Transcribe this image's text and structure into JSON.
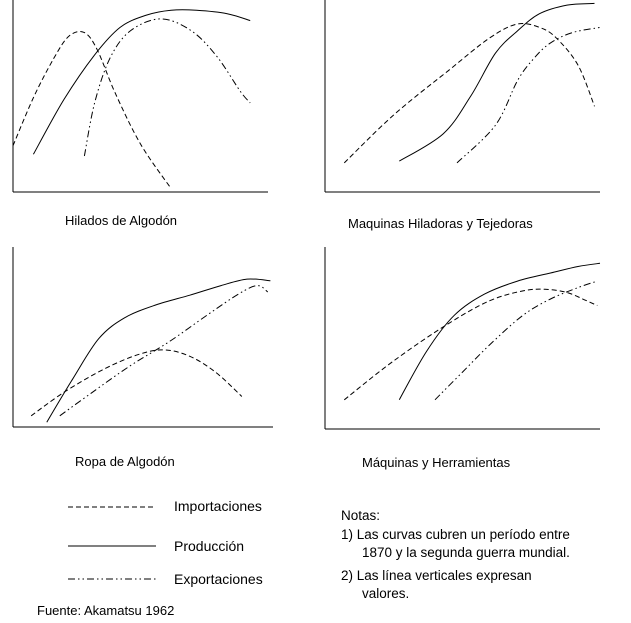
{
  "chart_data": [
    {
      "type": "line",
      "title": "Hilados de Algodón",
      "grid": false,
      "axis_ticks": false,
      "series": [
        {
          "name": "Importaciones",
          "style": "dashed",
          "points": [
            [
              0,
              0.27
            ],
            [
              0.08,
              0.55
            ],
            [
              0.16,
              0.78
            ],
            [
              0.22,
              0.91
            ],
            [
              0.28,
              0.93
            ],
            [
              0.33,
              0.83
            ],
            [
              0.4,
              0.58
            ],
            [
              0.5,
              0.28
            ],
            [
              0.62,
              0.02
            ]
          ]
        },
        {
          "name": "Producción",
          "style": "solid",
          "points": [
            [
              0.08,
              0.22
            ],
            [
              0.2,
              0.54
            ],
            [
              0.32,
              0.8
            ],
            [
              0.42,
              0.96
            ],
            [
              0.52,
              1.03
            ],
            [
              0.62,
              1.06
            ],
            [
              0.72,
              1.06
            ],
            [
              0.84,
              1.04
            ],
            [
              0.93,
              1.0
            ]
          ]
        },
        {
          "name": "Exportaciones",
          "style": "dash-dot",
          "points": [
            [
              0.28,
              0.21
            ],
            [
              0.32,
              0.52
            ],
            [
              0.38,
              0.78
            ],
            [
              0.46,
              0.94
            ],
            [
              0.58,
              1.01
            ],
            [
              0.7,
              0.94
            ],
            [
              0.8,
              0.79
            ],
            [
              0.89,
              0.59
            ],
            [
              0.93,
              0.52
            ]
          ]
        }
      ]
    },
    {
      "type": "line",
      "title": "Maquinas Hiladoras y Tejedoras",
      "grid": false,
      "axis_ticks": false,
      "series": [
        {
          "name": "Importaciones",
          "style": "dashed",
          "points": [
            [
              0.07,
              0.17
            ],
            [
              0.25,
              0.45
            ],
            [
              0.45,
              0.71
            ],
            [
              0.6,
              0.9
            ],
            [
              0.7,
              0.98
            ],
            [
              0.78,
              0.96
            ],
            [
              0.84,
              0.9
            ],
            [
              0.92,
              0.74
            ],
            [
              0.98,
              0.5
            ]
          ]
        },
        {
          "name": "Producción",
          "style": "solid",
          "points": [
            [
              0.27,
              0.18
            ],
            [
              0.43,
              0.34
            ],
            [
              0.53,
              0.56
            ],
            [
              0.62,
              0.81
            ],
            [
              0.7,
              0.94
            ],
            [
              0.78,
              1.04
            ],
            [
              0.88,
              1.09
            ],
            [
              0.98,
              1.1
            ]
          ]
        },
        {
          "name": "Exportaciones",
          "style": "dash-dot",
          "points": [
            [
              0.48,
              0.17
            ],
            [
              0.62,
              0.39
            ],
            [
              0.7,
              0.65
            ],
            [
              0.76,
              0.78
            ],
            [
              0.82,
              0.87
            ],
            [
              0.9,
              0.93
            ],
            [
              1.0,
              0.96
            ]
          ]
        }
      ]
    },
    {
      "type": "line",
      "title": "Ropa de Algodón",
      "grid": false,
      "axis_ticks": false,
      "series": [
        {
          "name": "Importaciones",
          "style": "dashed",
          "points": [
            [
              0.07,
              0.07
            ],
            [
              0.2,
              0.22
            ],
            [
              0.35,
              0.36
            ],
            [
              0.48,
              0.45
            ],
            [
              0.58,
              0.48
            ],
            [
              0.68,
              0.44
            ],
            [
              0.78,
              0.34
            ],
            [
              0.88,
              0.19
            ]
          ]
        },
        {
          "name": "Producción",
          "style": "solid",
          "points": [
            [
              0.13,
              0.03
            ],
            [
              0.23,
              0.3
            ],
            [
              0.33,
              0.55
            ],
            [
              0.43,
              0.68
            ],
            [
              0.55,
              0.76
            ],
            [
              0.68,
              0.82
            ],
            [
              0.8,
              0.88
            ],
            [
              0.9,
              0.92
            ],
            [
              0.99,
              0.91
            ]
          ]
        },
        {
          "name": "Exportaciones",
          "style": "dash-dot",
          "points": [
            [
              0.18,
              0.07
            ],
            [
              0.3,
              0.21
            ],
            [
              0.45,
              0.38
            ],
            [
              0.6,
              0.53
            ],
            [
              0.75,
              0.7
            ],
            [
              0.87,
              0.83
            ],
            [
              0.94,
              0.88
            ],
            [
              0.98,
              0.84
            ]
          ]
        }
      ]
    },
    {
      "type": "line",
      "title": "Máquinas y Herramientas",
      "grid": false,
      "axis_ticks": false,
      "series": [
        {
          "name": "Importaciones",
          "style": "dashed",
          "points": [
            [
              0.07,
              0.18
            ],
            [
              0.25,
              0.42
            ],
            [
              0.45,
              0.65
            ],
            [
              0.6,
              0.79
            ],
            [
              0.72,
              0.85
            ],
            [
              0.8,
              0.86
            ],
            [
              0.88,
              0.84
            ],
            [
              0.95,
              0.79
            ],
            [
              0.99,
              0.76
            ]
          ]
        },
        {
          "name": "Producción",
          "style": "solid",
          "points": [
            [
              0.27,
              0.18
            ],
            [
              0.37,
              0.48
            ],
            [
              0.47,
              0.7
            ],
            [
              0.58,
              0.83
            ],
            [
              0.7,
              0.91
            ],
            [
              0.82,
              0.96
            ],
            [
              0.92,
              1.0
            ],
            [
              1.0,
              1.02
            ]
          ]
        },
        {
          "name": "Exportaciones",
          "style": "dash-dot",
          "points": [
            [
              0.4,
              0.18
            ],
            [
              0.5,
              0.35
            ],
            [
              0.6,
              0.52
            ],
            [
              0.72,
              0.7
            ],
            [
              0.82,
              0.8
            ],
            [
              0.92,
              0.87
            ],
            [
              0.99,
              0.91
            ]
          ]
        }
      ]
    }
  ],
  "legend": [
    {
      "label": "Importaciones",
      "style": "dashed"
    },
    {
      "label": "Producción",
      "style": "solid"
    },
    {
      "label": "Exportaciones",
      "style": "dash-dot"
    }
  ],
  "source": "Fuente: Akamatsu 1962",
  "notes": {
    "title": "Notas:",
    "lines": [
      "1) Las curvas cubren un período entre",
      "1870 y la segunda guerra mundial.",
      "2) Las línea verticales expresan",
      "valores."
    ]
  },
  "colors": {
    "line": "#000000",
    "background": "#ffffff"
  }
}
